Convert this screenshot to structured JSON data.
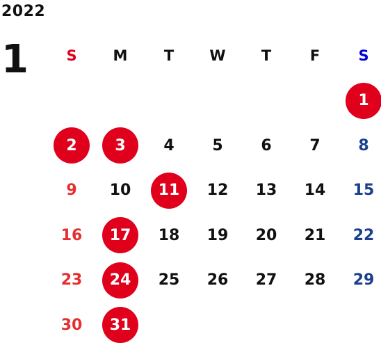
{
  "year": "2022",
  "month": "1",
  "colors": {
    "holiday_circle": "#e0001c",
    "sunday": "#e52f2f",
    "saturday": "#1a3f8f",
    "weekday": "#111111"
  },
  "weekdays": [
    "S",
    "M",
    "T",
    "W",
    "T",
    "F",
    "S"
  ],
  "weeks": [
    [
      {
        "d": ""
      },
      {
        "d": ""
      },
      {
        "d": ""
      },
      {
        "d": ""
      },
      {
        "d": ""
      },
      {
        "d": ""
      },
      {
        "d": "1",
        "holiday": true
      }
    ],
    [
      {
        "d": "2",
        "holiday": true
      },
      {
        "d": "3",
        "holiday": true
      },
      {
        "d": "4"
      },
      {
        "d": "5"
      },
      {
        "d": "6"
      },
      {
        "d": "7"
      },
      {
        "d": "8"
      }
    ],
    [
      {
        "d": "9"
      },
      {
        "d": "10"
      },
      {
        "d": "11",
        "holiday": true
      },
      {
        "d": "12"
      },
      {
        "d": "13"
      },
      {
        "d": "14"
      },
      {
        "d": "15"
      }
    ],
    [
      {
        "d": "16"
      },
      {
        "d": "17",
        "holiday": true
      },
      {
        "d": "18"
      },
      {
        "d": "19"
      },
      {
        "d": "20"
      },
      {
        "d": "21"
      },
      {
        "d": "22"
      }
    ],
    [
      {
        "d": "23"
      },
      {
        "d": "24",
        "holiday": true
      },
      {
        "d": "25"
      },
      {
        "d": "26"
      },
      {
        "d": "27"
      },
      {
        "d": "28"
      },
      {
        "d": "29"
      }
    ],
    [
      {
        "d": "30"
      },
      {
        "d": "31",
        "holiday": true
      },
      {
        "d": ""
      },
      {
        "d": ""
      },
      {
        "d": ""
      },
      {
        "d": ""
      },
      {
        "d": ""
      }
    ]
  ]
}
